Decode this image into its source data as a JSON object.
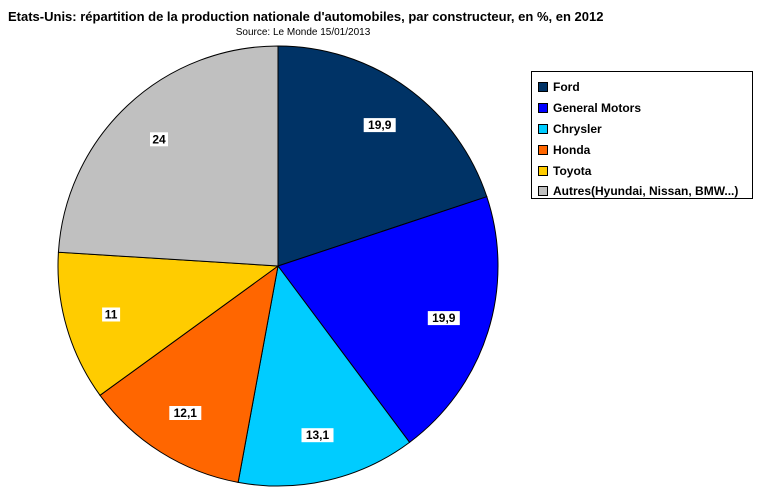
{
  "chart_data": {
    "type": "pie",
    "title": "Etats-Unis: répartition de la production nationale d'automobiles, par constructeur, en %, en 2012",
    "subtitle": "Source: Le Monde 15/01/2013",
    "legend_position": "right",
    "slices": [
      {
        "name": "Ford",
        "value": 19.9,
        "label": "19,9",
        "color": "#003366"
      },
      {
        "name": "General Motors",
        "value": 19.9,
        "label": "19,9",
        "color": "#0000ff"
      },
      {
        "name": "Chrysler",
        "value": 13.1,
        "label": "13,1",
        "color": "#00ccff"
      },
      {
        "name": "Honda",
        "value": 12.1,
        "label": "12,1",
        "color": "#ff6600"
      },
      {
        "name": "Toyota",
        "value": 11,
        "label": "11",
        "color": "#ffcc00"
      },
      {
        "name": "Autres(Hyundai, Nissan, BMW...)",
        "value": 24,
        "label": "24",
        "color": "#c0c0c0"
      }
    ]
  }
}
